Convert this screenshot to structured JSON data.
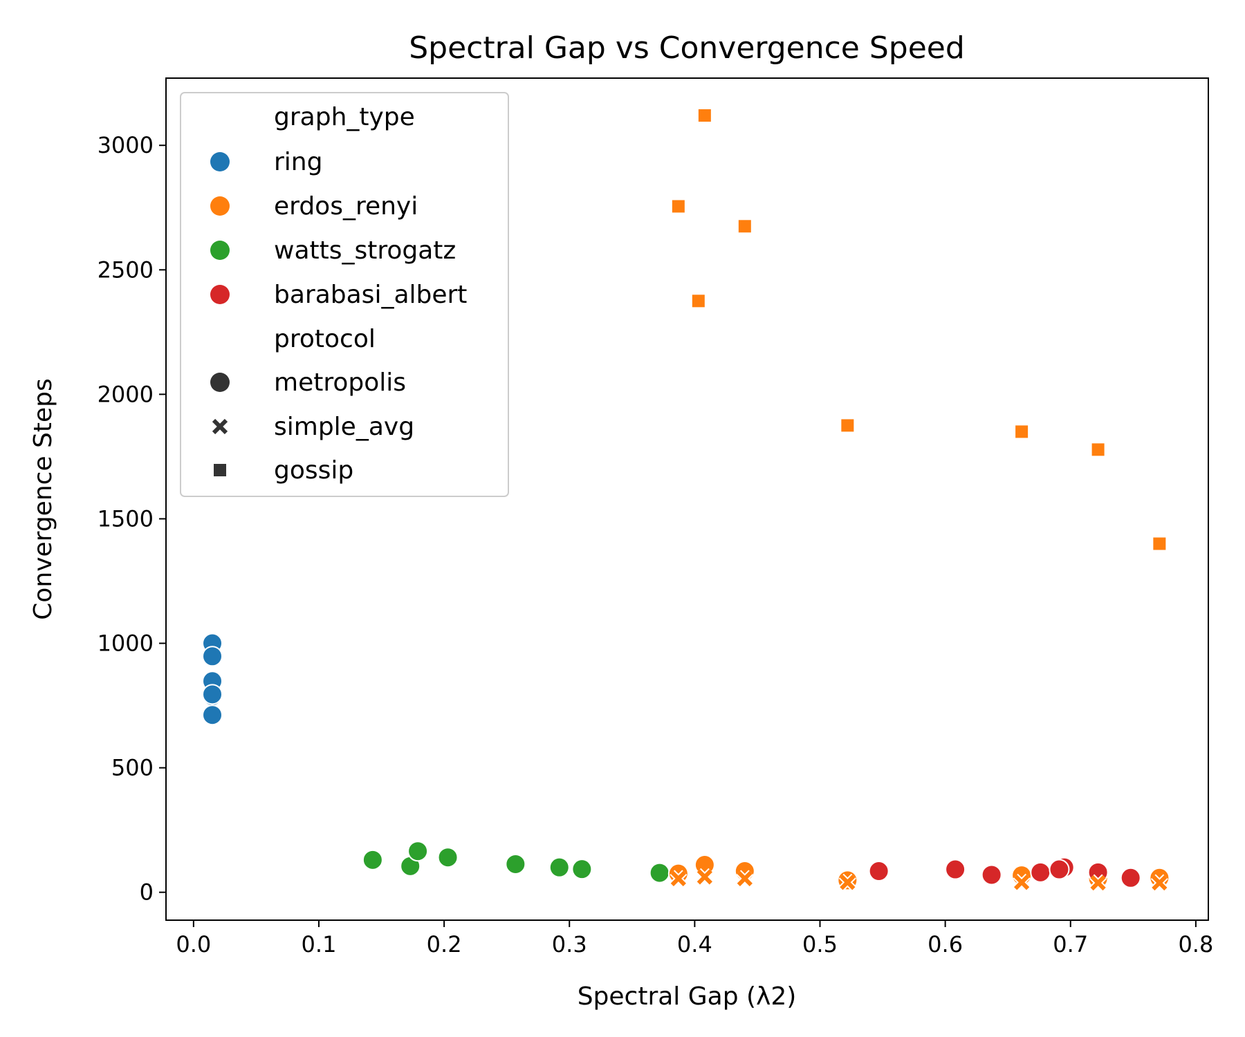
{
  "colors": {
    "ring": "#1f77b4",
    "erdos_renyi": "#ff7f0e",
    "watts_strogatz": "#2ca02c",
    "barabasi_albert": "#d62728",
    "legend_marker": "#333333"
  },
  "chart_data": {
    "type": "scatter",
    "title": "Spectral Gap vs Convergence Speed",
    "xlabel": "Spectral Gap (λ2)",
    "ylabel": "Convergence Steps",
    "xlim": [
      -0.022,
      0.81
    ],
    "ylim": [
      -112,
      3270
    ],
    "xticks": [
      0.0,
      0.1,
      0.2,
      0.3,
      0.4,
      0.5,
      0.6,
      0.7,
      0.8
    ],
    "xtick_labels": [
      "0.0",
      "0.1",
      "0.2",
      "0.3",
      "0.4",
      "0.5",
      "0.6",
      "0.7",
      "0.8"
    ],
    "yticks": [
      0,
      500,
      1000,
      1500,
      2000,
      2500,
      3000
    ],
    "ytick_labels": [
      "0",
      "500",
      "1000",
      "1500",
      "2000",
      "2500",
      "3000"
    ],
    "grid": false,
    "legend": {
      "placement": "upper-left",
      "hue_title": "graph_type",
      "style_title": "protocol",
      "hue_entries": [
        "ring",
        "erdos_renyi",
        "watts_strogatz",
        "barabasi_albert"
      ],
      "style_entries": [
        "metropolis",
        "simple_avg",
        "gossip"
      ],
      "style_markers": [
        "circle",
        "x",
        "square"
      ]
    },
    "series": [
      {
        "name": "ring",
        "protocol": "metropolis",
        "marker": "circle",
        "points": [
          [
            0.015,
            1000
          ],
          [
            0.015,
            948
          ],
          [
            0.015,
            848
          ],
          [
            0.015,
            788
          ],
          [
            0.015,
            712
          ],
          [
            0.015,
            795
          ]
        ]
      },
      {
        "name": "watts_strogatz",
        "protocol": "metropolis",
        "marker": "circle",
        "points": [
          [
            0.143,
            130
          ],
          [
            0.173,
            105
          ],
          [
            0.179,
            165
          ],
          [
            0.203,
            140
          ],
          [
            0.257,
            113
          ],
          [
            0.292,
            100
          ],
          [
            0.31,
            93
          ],
          [
            0.372,
            78
          ]
        ]
      },
      {
        "name": "erdos_renyi",
        "protocol": "metropolis",
        "marker": "circle",
        "points": [
          [
            0.387,
            75
          ],
          [
            0.408,
            110
          ],
          [
            0.44,
            85
          ],
          [
            0.522,
            48
          ],
          [
            0.661,
            68
          ],
          [
            0.722,
            55
          ],
          [
            0.771,
            58
          ]
        ]
      },
      {
        "name": "barabasi_albert",
        "protocol": "metropolis",
        "marker": "circle",
        "points": [
          [
            0.547,
            85
          ],
          [
            0.608,
            92
          ],
          [
            0.637,
            70
          ],
          [
            0.676,
            80
          ],
          [
            0.695,
            100
          ],
          [
            0.691,
            92
          ],
          [
            0.722,
            80
          ],
          [
            0.748,
            58
          ]
        ]
      },
      {
        "name": "erdos_renyi",
        "protocol": "simple_avg",
        "marker": "x",
        "points": [
          [
            0.387,
            55
          ],
          [
            0.408,
            62
          ],
          [
            0.44,
            55
          ],
          [
            0.522,
            40
          ],
          [
            0.661,
            40
          ],
          [
            0.722,
            38
          ],
          [
            0.771,
            38
          ]
        ]
      },
      {
        "name": "erdos_renyi",
        "protocol": "gossip",
        "marker": "square",
        "points": [
          [
            0.408,
            3120
          ],
          [
            0.387,
            2755
          ],
          [
            0.44,
            2675
          ],
          [
            0.403,
            2375
          ],
          [
            0.522,
            1875
          ],
          [
            0.661,
            1850
          ],
          [
            0.722,
            1778
          ],
          [
            0.771,
            1400
          ]
        ]
      }
    ]
  }
}
